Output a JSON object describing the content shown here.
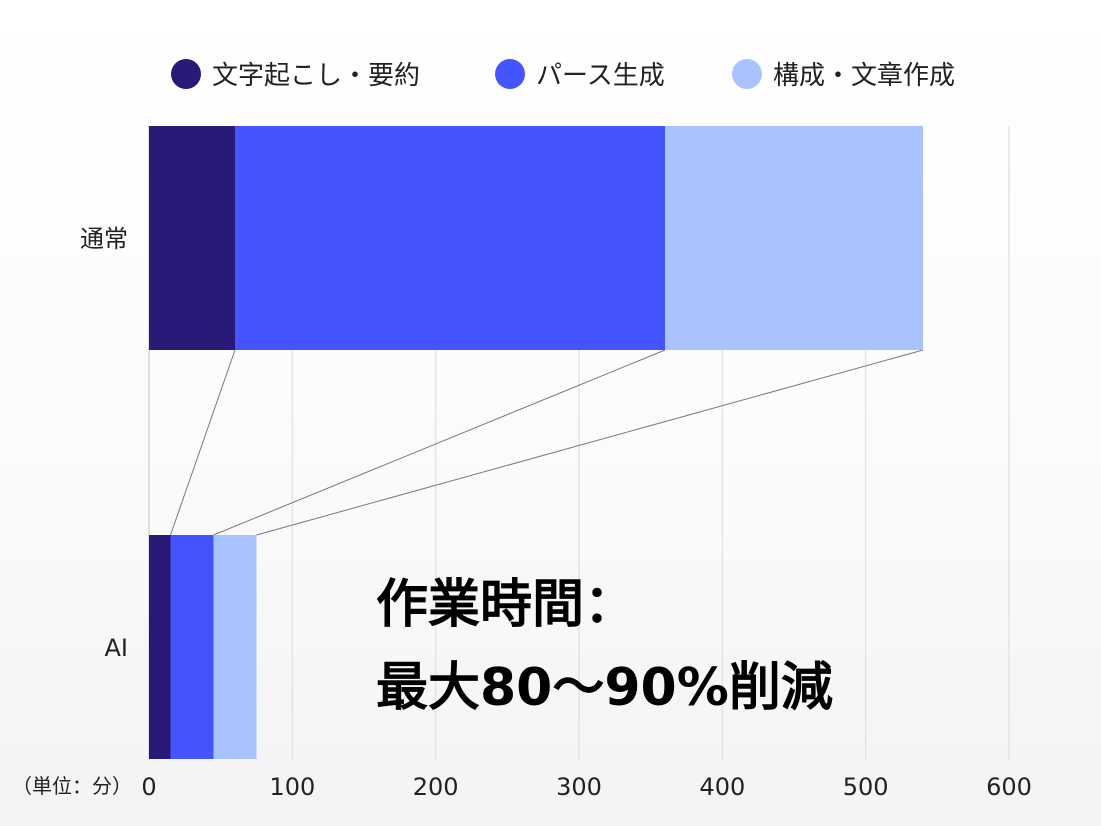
{
  "chart_data": {
    "type": "bar",
    "orientation": "horizontal",
    "stacked": true,
    "categories": [
      "通常",
      "AI"
    ],
    "series": [
      {
        "name": "文字起こし・要約",
        "values": [
          60,
          15
        ],
        "color": "#291a78"
      },
      {
        "name": "パース生成",
        "values": [
          300,
          30
        ],
        "color": "#4455ff"
      },
      {
        "name": "構成・文章作成",
        "values": [
          180,
          30
        ],
        "color": "#a9c3ff"
      }
    ],
    "xlim": [
      0,
      600
    ],
    "xticks": [
      0,
      100,
      200,
      300,
      400,
      500,
      600
    ],
    "unit_label": "（単位：分）",
    "annotation": [
      "作業時間：",
      "最大80〜90%削減"
    ],
    "grid": "vertical",
    "legend_position": "top"
  }
}
